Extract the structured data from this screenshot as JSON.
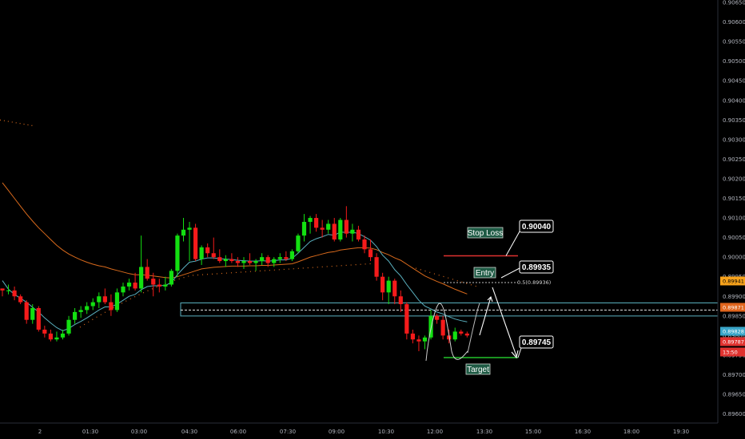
{
  "chart_data": {
    "type": "candlestick",
    "y_axis": {
      "range": [
        0.89575,
        0.90655
      ],
      "ticks": [
        "0.90650",
        "0.90600",
        "0.90550",
        "0.90500",
        "0.90450",
        "0.90400",
        "0.90350",
        "0.90300",
        "0.90250",
        "0.90200",
        "0.90150",
        "0.90100",
        "0.90050",
        "0.90000",
        "0.89950",
        "0.89900",
        "0.89850",
        "0.89800",
        "0.89750",
        "0.89700",
        "0.89650",
        "0.89600"
      ]
    },
    "x_axis": {
      "ticks": [
        "2",
        "01:30",
        "03:00",
        "04:30",
        "06:00",
        "07:30",
        "09:00",
        "10:30",
        "12:00",
        "13:30",
        "15:00",
        "16:30",
        "18:00",
        "19:30"
      ]
    },
    "candles": [
      [
        0.8992,
        0.8992,
        0.899,
        0.89915
      ],
      [
        0.89915,
        0.8993,
        0.89905,
        0.89915
      ],
      [
        0.89915,
        0.89925,
        0.8989,
        0.899
      ],
      [
        0.899,
        0.89905,
        0.8988,
        0.89885
      ],
      [
        0.89885,
        0.8989,
        0.8983,
        0.8984
      ],
      [
        0.8984,
        0.8988,
        0.8983,
        0.8987
      ],
      [
        0.8987,
        0.89875,
        0.8981,
        0.89815
      ],
      [
        0.89815,
        0.89825,
        0.89795,
        0.89805
      ],
      [
        0.89805,
        0.89815,
        0.89785,
        0.8979
      ],
      [
        0.8979,
        0.8981,
        0.89785,
        0.89795
      ],
      [
        0.89795,
        0.89815,
        0.8979,
        0.89805
      ],
      [
        0.89805,
        0.8985,
        0.898,
        0.8984
      ],
      [
        0.8984,
        0.8987,
        0.8983,
        0.8986
      ],
      [
        0.8986,
        0.89875,
        0.89845,
        0.89865
      ],
      [
        0.89865,
        0.89885,
        0.89855,
        0.89875
      ],
      [
        0.89875,
        0.89895,
        0.89865,
        0.89885
      ],
      [
        0.89885,
        0.8991,
        0.8987,
        0.899
      ],
      [
        0.899,
        0.8992,
        0.8988,
        0.89885
      ],
      [
        0.89885,
        0.89905,
        0.8985,
        0.89865
      ],
      [
        0.89865,
        0.8992,
        0.8986,
        0.8991
      ],
      [
        0.8991,
        0.89935,
        0.899,
        0.89925
      ],
      [
        0.89925,
        0.89945,
        0.89915,
        0.89935
      ],
      [
        0.89935,
        0.8996,
        0.89915,
        0.8992
      ],
      [
        0.8992,
        0.90055,
        0.8991,
        0.89975
      ],
      [
        0.89975,
        0.89995,
        0.8994,
        0.89945
      ],
      [
        0.89945,
        0.8996,
        0.899,
        0.8993
      ],
      [
        0.8993,
        0.89945,
        0.8991,
        0.89925
      ],
      [
        0.89925,
        0.8995,
        0.89915,
        0.8993
      ],
      [
        0.8993,
        0.8997,
        0.89925,
        0.89965
      ],
      [
        0.89965,
        0.9006,
        0.8995,
        0.90055
      ],
      [
        0.90055,
        0.901,
        0.9004,
        0.9007
      ],
      [
        0.9007,
        0.9009,
        0.8999,
        0.90075
      ],
      [
        0.90075,
        0.90085,
        0.8999,
        0.89995
      ],
      [
        0.89995,
        0.9003,
        0.8998,
        0.90025
      ],
      [
        0.90025,
        0.90035,
        0.9,
        0.9001
      ],
      [
        0.9001,
        0.9005,
        0.89995,
        0.9
      ],
      [
        0.9,
        0.9002,
        0.89985,
        0.8999
      ],
      [
        0.8999,
        0.90005,
        0.89975,
        0.89995
      ],
      [
        0.89995,
        0.9001,
        0.89985,
        0.8999
      ],
      [
        0.8999,
        0.9,
        0.89975,
        0.89985
      ],
      [
        0.89985,
        0.9,
        0.8997,
        0.8999
      ],
      [
        0.8999,
        0.9001,
        0.8998,
        0.89985
      ],
      [
        0.89985,
        0.89995,
        0.89965,
        0.8999
      ],
      [
        0.8999,
        0.9001,
        0.8998,
        0.9
      ],
      [
        0.9,
        0.90005,
        0.89975,
        0.89985
      ],
      [
        0.89985,
        0.9,
        0.89975,
        0.89995
      ],
      [
        0.89995,
        0.9001,
        0.89985,
        0.9
      ],
      [
        0.9,
        0.90015,
        0.8999,
        0.89995
      ],
      [
        0.89995,
        0.9002,
        0.8999,
        0.90015
      ],
      [
        0.90015,
        0.9006,
        0.9001,
        0.90055
      ],
      [
        0.90055,
        0.9011,
        0.9004,
        0.9009
      ],
      [
        0.9009,
        0.90105,
        0.9006,
        0.901
      ],
      [
        0.901,
        0.9011,
        0.90065,
        0.90075
      ],
      [
        0.90075,
        0.90095,
        0.9005,
        0.9007
      ],
      [
        0.9007,
        0.90095,
        0.9006,
        0.90085
      ],
      [
        0.90085,
        0.901,
        0.9004,
        0.90045
      ],
      [
        0.90045,
        0.901,
        0.9004,
        0.90095
      ],
      [
        0.90095,
        0.9013,
        0.9005,
        0.9006
      ],
      [
        0.9006,
        0.90085,
        0.9004,
        0.9007
      ],
      [
        0.9007,
        0.9008,
        0.9004,
        0.90045
      ],
      [
        0.90045,
        0.90055,
        0.9001,
        0.9002
      ],
      [
        0.9002,
        0.90045,
        0.8999,
        0.9
      ],
      [
        0.9,
        0.9001,
        0.8994,
        0.8995
      ],
      [
        0.8995,
        0.8996,
        0.8989,
        0.8991
      ],
      [
        0.8991,
        0.8995,
        0.8988,
        0.8994
      ],
      [
        0.8994,
        0.89945,
        0.8988,
        0.899
      ],
      [
        0.899,
        0.89915,
        0.8986,
        0.8988
      ],
      [
        0.8988,
        0.89885,
        0.8979,
        0.89805
      ],
      [
        0.89805,
        0.89815,
        0.8978,
        0.8979
      ],
      [
        0.8979,
        0.898,
        0.8976,
        0.89785
      ],
      [
        0.89785,
        0.898,
        0.89765,
        0.89795
      ],
      [
        0.89795,
        0.89865,
        0.8979,
        0.8985
      ],
      [
        0.8985,
        0.89855,
        0.8983,
        0.8984
      ],
      [
        0.8984,
        0.8985,
        0.8979,
        0.898
      ],
      [
        0.898,
        0.89815,
        0.8978,
        0.8979
      ],
      [
        0.8979,
        0.8982,
        0.89785,
        0.8981
      ],
      [
        0.8981,
        0.89815,
        0.898,
        0.89805
      ],
      [
        0.89805,
        0.8981,
        0.89795,
        0.898
      ]
    ],
    "ma_fast": [
      0.8994,
      0.89918,
      0.89905,
      0.89895,
      0.89885,
      0.89872,
      0.8986,
      0.89845,
      0.89832,
      0.8982,
      0.89812,
      0.89818,
      0.89828,
      0.89836,
      0.89845,
      0.89855,
      0.89865,
      0.89873,
      0.89873,
      0.8988,
      0.8989,
      0.899,
      0.89905,
      0.89917,
      0.89925,
      0.89927,
      0.89927,
      0.89928,
      0.89935,
      0.89955,
      0.89972,
      0.89987,
      0.8999,
      0.89995,
      0.89998,
      0.89998,
      0.89996,
      0.89995,
      0.89994,
      0.89992,
      0.89991,
      0.8999,
      0.8999,
      0.89991,
      0.8999,
      0.89991,
      0.89993,
      0.89993,
      0.89997,
      0.9001,
      0.90025,
      0.9004,
      0.90047,
      0.90052,
      0.90058,
      0.90056,
      0.90064,
      0.90063,
      0.90064,
      0.9006,
      0.90052,
      0.90043,
      0.90027,
      0.90005,
      0.8999,
      0.89968,
      0.89952,
      0.8993,
      0.8991,
      0.8989,
      0.89875,
      0.89868,
      0.8986,
      0.89855,
      0.89848,
      0.89842,
      0.89838,
      0.89835
    ],
    "ma_slow": [
      0.9019,
      0.9017,
      0.9015,
      0.9013,
      0.9011,
      0.90092,
      0.90075,
      0.9006,
      0.90045,
      0.9003,
      0.90018,
      0.90008,
      0.9,
      0.89993,
      0.89987,
      0.89982,
      0.89978,
      0.89975,
      0.8997,
      0.89966,
      0.89962,
      0.89958,
      0.89955,
      0.89955,
      0.89954,
      0.89952,
      0.8995,
      0.89948,
      0.89947,
      0.8995,
      0.89955,
      0.8996,
      0.89965,
      0.8997,
      0.89972,
      0.89974,
      0.89975,
      0.89976,
      0.89977,
      0.89977,
      0.89977,
      0.89978,
      0.89978,
      0.89979,
      0.89979,
      0.8998,
      0.89981,
      0.89982,
      0.89983,
      0.89988,
      0.89994,
      0.9,
      0.90004,
      0.90008,
      0.90012,
      0.90014,
      0.90018,
      0.9002,
      0.90022,
      0.90024,
      0.90024,
      0.90023,
      0.90019,
      0.90012,
      0.90006,
      0.89998,
      0.89992,
      0.89982,
      0.89972,
      0.89962,
      0.89952,
      0.89945,
      0.89938,
      0.89932,
      0.89925,
      0.89918,
      0.89912,
      0.89906
    ],
    "support_zone": [
      0.89858,
      0.89875
    ],
    "current_price_line": 0.89865,
    "annotations": {
      "stop_loss": {
        "label": "Stop Loss",
        "price": 0.9004,
        "value_label": "0.90040",
        "line_color": "#e0322f"
      },
      "entry": {
        "label": "Entry",
        "price": 0.89935,
        "value_label": "0.89935",
        "fib_label": "0.5(0.89936)"
      },
      "target": {
        "label": "Target",
        "price": 0.89745,
        "value_label": "0.89745",
        "line_color": "#22c32a"
      }
    },
    "price_badges": [
      {
        "text": "0.89941",
        "price": 0.89941,
        "bg": "#f7a21b",
        "fg": "#000000"
      },
      {
        "text": "0.89871",
        "price": 0.89871,
        "bg": "#e0651d",
        "fg": "#ffffff"
      },
      {
        "text": "0.89828",
        "price": 0.89828,
        "bg": "#3aa6c9",
        "fg": "#ffffff"
      },
      {
        "text": "0.89787",
        "price": 0.89787,
        "bg": "#e0322f",
        "fg": "#ffffff"
      },
      {
        "text": "13:50",
        "price": 0.89767,
        "bg": "#e0322f",
        "fg": "#ffffff"
      }
    ],
    "colors": {
      "up": "#13e011",
      "down": "#f51b1b",
      "ma_fast": "#5ab0bf",
      "ma_slow": "#d96a1c",
      "zone": "#5ab0bf",
      "background": "#000000"
    }
  }
}
